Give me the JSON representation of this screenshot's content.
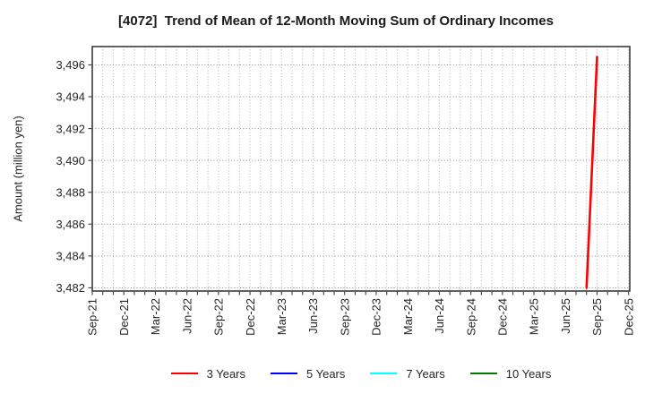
{
  "chart_data": {
    "type": "line",
    "title": "[4072]  Trend of Mean of 12-Month Moving Sum of Ordinary Incomes",
    "ylabel": "Amount (million yen)",
    "xlabel": "",
    "grid": {
      "horizontal": "dotted",
      "vertical": "dotted-monthly"
    },
    "legend_position": "bottom-center",
    "ylim": [
      3481.8,
      3497.15
    ],
    "y_ticks": [
      {
        "value": 3482,
        "label": "3,482"
      },
      {
        "value": 3484,
        "label": "3,484"
      },
      {
        "value": 3486,
        "label": "3,486"
      },
      {
        "value": 3488,
        "label": "3,488"
      },
      {
        "value": 3490,
        "label": "3,490"
      },
      {
        "value": 3492,
        "label": "3,492"
      },
      {
        "value": 3494,
        "label": "3,494"
      },
      {
        "value": 3496,
        "label": "3,496"
      }
    ],
    "x_unit": "month",
    "x_start": "Sep-21",
    "x_end": "Dec-25",
    "x_months_span": 51,
    "x_tick_every_months": 3,
    "x_tick_labels": [
      "Sep-21",
      "Dec-21",
      "Mar-22",
      "Jun-22",
      "Sep-22",
      "Dec-22",
      "Mar-23",
      "Jun-23",
      "Sep-23",
      "Dec-23",
      "Mar-24",
      "Jun-24",
      "Sep-24",
      "Dec-24",
      "Mar-25",
      "Jun-25",
      "Sep-25",
      "Dec-25"
    ],
    "series": [
      {
        "name": "3 Years",
        "color": "#ff0000",
        "points": [
          {
            "x_label": "Aug-25",
            "month_index": 47,
            "value": 3482.0
          },
          {
            "x_label": "Sep-25",
            "month_index": 48,
            "value": 3496.5
          }
        ]
      },
      {
        "name": "5 Years",
        "color": "#0000ff",
        "points": []
      },
      {
        "name": "7 Years",
        "color": "#00ffff",
        "points": []
      },
      {
        "name": "10 Years",
        "color": "#008000",
        "points": []
      }
    ],
    "colors": {
      "plot_border": "#3a3a3a",
      "h_gridline": "#8f8f8f",
      "v_gridline": "#b4b4b4",
      "tick_label": "#262626",
      "title_text": "#1a1a1a"
    }
  }
}
